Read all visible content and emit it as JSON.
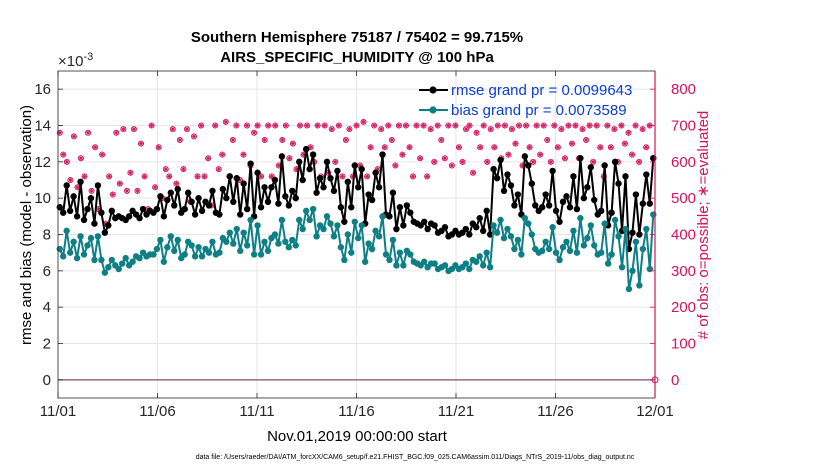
{
  "chart_data": {
    "type": "line",
    "title": "Southern Hemisphere 75187 / 75402 = 99.715%",
    "subtitle": "AIRS_SPECIFIC_HUMIDITY @ 100 hPa",
    "xlabel": "Nov.01,2019 00:00:00 start",
    "ylabel": "rmse and bias (model - observation)",
    "y2label": "# of obs: o=possible; ∗=evaluated",
    "exponent_label": "×10",
    "exponent_power": "-3",
    "xlim": [
      0,
      30
    ],
    "ylim": [
      -1,
      17
    ],
    "y2lim": [
      -50,
      850
    ],
    "x_ticks": [
      0,
      5,
      10,
      15,
      20,
      25,
      30
    ],
    "x_tick_labels": [
      "11/01",
      "11/06",
      "11/11",
      "11/16",
      "11/21",
      "11/26",
      "12/01"
    ],
    "y_ticks": [
      0,
      2,
      4,
      6,
      8,
      10,
      12,
      14,
      16
    ],
    "y_tick_labels": [
      "0",
      "2",
      "4",
      "6",
      "8",
      "10",
      "12",
      "14",
      "16"
    ],
    "y2_ticks": [
      0,
      100,
      200,
      300,
      400,
      500,
      600,
      700,
      800
    ],
    "y2_tick_labels": [
      "0",
      "100",
      "200",
      "300",
      "400",
      "500",
      "600",
      "700",
      "800"
    ],
    "colors": {
      "rmse": "#000000",
      "bias": "#0f7f86",
      "obs": "#d2145a",
      "legend_text": "#0a3cd8",
      "grid": "#e6e6e6"
    },
    "series": [
      {
        "name": "rmse grand pr = 0.0099643",
        "color": "#000000",
        "values": [
          9.5,
          9.2,
          10.7,
          9.3,
          10.1,
          9.0,
          10.9,
          8.8,
          9.4,
          10.0,
          8.6,
          10.7,
          9.2,
          8.1,
          8.5,
          9.3,
          8.9,
          9.0,
          8.9,
          8.8,
          9.0,
          9.3,
          9.1,
          8.9,
          9.4,
          9.1,
          9.3,
          9.2,
          9.4,
          10.1,
          9.0,
          9.9,
          10.3,
          9.6,
          10.5,
          9.2,
          9.4,
          10.3,
          9.8,
          9.1,
          10.0,
          9.3,
          9.8,
          9.6,
          10.4,
          9.2,
          9.1,
          10.5,
          10.0,
          11.2,
          9.8,
          11.1,
          9.1,
          10.8,
          9.4,
          11.9,
          9.0,
          11.4,
          9.5,
          10.6,
          9.8,
          10.6,
          11.0,
          9.7,
          12.3,
          10.1,
          9.6,
          10.4,
          10.0,
          12.0,
          11.0,
          12.7,
          11.6,
          12.4,
          10.3,
          11.1,
          10.6,
          12.0,
          11.1,
          10.4,
          11.5,
          9.5,
          8.7,
          10.9,
          9.5,
          11.8,
          10.6,
          11.6,
          8.6,
          10.2,
          9.9,
          11.4,
          10.6,
          12.4,
          9.1,
          9.0,
          10.3,
          8.3,
          9.5,
          8.5,
          9.6,
          9.2,
          8.7,
          8.6,
          8.5,
          8.7,
          8.3,
          8.6,
          8.5,
          8.1,
          8.2,
          8.4,
          7.9,
          8.0,
          8.2,
          8.0,
          8.1,
          8.3,
          8.0,
          8.6,
          8.4,
          8.9,
          8.2,
          9.3,
          8.0,
          11.6,
          11.1,
          12.1,
          10.4,
          11.3,
          10.7,
          9.6,
          10.2,
          9.1,
          12.3,
          11.8,
          10.8,
          9.6,
          9.3,
          9.5,
          10.2,
          9.6,
          11.5,
          9.3,
          8.7,
          9.8,
          10.1,
          9.5,
          11.2,
          9.4,
          12.2,
          10.0,
          10.6,
          11.7,
          9.9,
          9.1,
          9.3,
          11.8,
          8.5,
          9.2,
          12.0,
          10.8,
          8.2,
          11.2,
          7.2,
          8.1,
          10.2,
          8.0,
          9.7,
          11.3,
          9.7,
          12.2
        ]
      },
      {
        "name": "bias grand pr = 0.0073589",
        "color": "#0f7f86",
        "values": [
          7.2,
          6.8,
          8.2,
          7.0,
          7.6,
          6.7,
          7.9,
          6.9,
          7.4,
          7.8,
          6.6,
          7.9,
          6.6,
          5.9,
          6.2,
          6.6,
          6.3,
          6.1,
          6.4,
          6.7,
          6.3,
          6.5,
          6.8,
          6.7,
          7.0,
          6.8,
          6.9,
          6.9,
          7.2,
          7.7,
          6.5,
          7.3,
          7.9,
          7.1,
          7.7,
          6.7,
          6.9,
          7.6,
          7.4,
          6.8,
          7.3,
          6.8,
          7.2,
          7.0,
          7.6,
          6.9,
          7.0,
          7.8,
          7.6,
          8.1,
          7.5,
          8.3,
          7.1,
          8.1,
          7.4,
          8.8,
          6.9,
          8.5,
          6.9,
          7.6,
          7.1,
          7.8,
          8.0,
          7.5,
          8.8,
          7.6,
          7.3,
          7.7,
          7.4,
          8.8,
          8.3,
          9.3,
          8.8,
          9.4,
          7.9,
          8.5,
          8.3,
          9.0,
          8.6,
          7.9,
          8.5,
          7.3,
          6.6,
          8.0,
          7.0,
          8.7,
          7.8,
          8.5,
          6.5,
          7.5,
          7.2,
          8.2,
          7.9,
          9.0,
          6.9,
          6.6,
          7.7,
          6.3,
          7.0,
          6.3,
          7.1,
          6.9,
          6.5,
          6.4,
          6.3,
          6.5,
          6.2,
          6.4,
          6.4,
          6.1,
          6.2,
          6.3,
          6.0,
          6.1,
          6.3,
          6.1,
          6.2,
          6.4,
          6.1,
          6.6,
          6.5,
          6.8,
          6.3,
          7.0,
          6.2,
          8.5,
          8.1,
          8.8,
          7.8,
          8.3,
          7.9,
          7.2,
          7.7,
          6.9,
          8.9,
          8.6,
          8.0,
          7.2,
          7.0,
          7.1,
          7.6,
          7.2,
          8.4,
          7.0,
          6.6,
          7.3,
          7.6,
          7.1,
          8.2,
          7.0,
          8.9,
          7.4,
          7.8,
          8.5,
          7.4,
          6.9,
          7.0,
          8.6,
          6.4,
          6.9,
          8.8,
          7.9,
          6.2,
          8.3,
          5.0,
          6.0,
          7.6,
          5.2,
          7.2,
          8.3,
          6.1,
          9.1
        ]
      },
      {
        "name": "obs possible",
        "axis": "right",
        "marker": "o",
        "color": "#d2145a",
        "values": [
          680,
          620,
          600,
          550,
          670,
          530,
          610,
          560,
          680,
          520,
          640,
          470,
          620,
          430,
          560,
          510,
          680,
          540,
          690,
          520,
          570,
          690,
          520,
          650,
          560,
          470,
          700,
          530,
          640,
          500,
          580,
          560,
          690,
          540,
          660,
          580,
          690,
          490,
          670,
          560,
          700,
          560,
          610,
          480,
          700,
          580,
          620,
          710,
          560,
          660,
          700,
          550,
          620,
          700,
          590,
          680,
          700,
          560,
          660,
          700,
          560,
          700,
          590,
          660,
          700,
          610,
          650,
          580,
          700,
          620,
          700,
          640,
          600,
          700,
          560,
          700,
          570,
          690,
          600,
          700,
          560,
          660,
          690,
          560,
          700,
          590,
          710,
          560,
          640,
          700,
          580,
          690,
          640,
          700,
          660,
          590,
          700,
          620,
          700,
          640,
          560,
          700,
          610,
          700,
          560,
          690,
          600,
          700,
          660,
          610,
          700,
          590,
          700,
          640,
          600,
          690,
          700,
          570,
          680,
          640,
          700,
          600,
          690,
          640,
          700,
          610,
          700,
          620,
          690,
          650,
          700,
          590,
          700,
          640,
          600,
          700,
          620,
          700,
          660,
          600,
          700,
          640,
          690,
          610,
          700,
          650,
          700,
          610,
          690,
          660,
          700,
          600,
          700,
          640,
          560,
          700,
          640,
          690,
          600,
          700,
          650,
          680,
          620,
          700,
          600,
          690,
          640,
          700,
          610
        ]
      },
      {
        "name": "obs evaluated",
        "axis": "right",
        "marker": "*",
        "color": "#d2145a",
        "values": [
          680,
          620,
          600,
          550,
          670,
          530,
          610,
          560,
          680,
          520,
          640,
          470,
          620,
          430,
          560,
          510,
          680,
          540,
          690,
          520,
          570,
          690,
          520,
          650,
          560,
          470,
          700,
          530,
          640,
          500,
          580,
          560,
          690,
          540,
          660,
          580,
          690,
          490,
          670,
          560,
          700,
          560,
          610,
          480,
          700,
          580,
          620,
          710,
          560,
          660,
          700,
          550,
          620,
          700,
          590,
          680,
          700,
          560,
          660,
          700,
          560,
          700,
          590,
          660,
          700,
          610,
          650,
          580,
          700,
          620,
          700,
          640,
          600,
          700,
          560,
          700,
          570,
          690,
          600,
          700,
          560,
          660,
          690,
          560,
          700,
          590,
          710,
          560,
          640,
          700,
          580,
          690,
          640,
          700,
          660,
          590,
          700,
          620,
          700,
          640,
          560,
          700,
          610,
          700,
          560,
          690,
          600,
          700,
          660,
          610,
          700,
          590,
          700,
          640,
          600,
          690,
          700,
          570,
          680,
          640,
          700,
          600,
          690,
          640,
          700,
          610,
          700,
          620,
          690,
          650,
          700,
          590,
          700,
          640,
          600,
          700,
          620,
          700,
          660,
          600,
          700,
          640,
          690,
          610,
          700,
          650,
          700,
          610,
          690,
          660,
          700,
          600,
          700,
          640,
          560,
          700,
          640,
          690,
          600,
          700,
          650,
          680,
          620,
          700,
          600,
          690,
          640,
          700,
          610
        ]
      }
    ],
    "footer": "data file: /Users/raeder/DAI/ATM_forcXX/CAM6_setup/f.e21.FHIST_BGC.f09_025.CAM6assim.011/Diags_NTrS_2019-11/obs_diag_output.nc"
  }
}
